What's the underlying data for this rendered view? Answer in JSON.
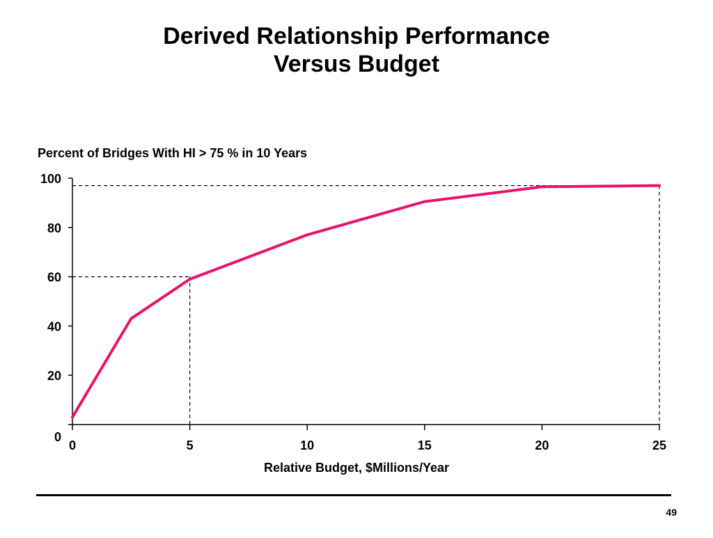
{
  "slide": {
    "title_line1": "Derived Relationship Performance",
    "title_line2": "Versus Budget",
    "page_number": "49"
  },
  "chart_data": {
    "type": "line",
    "title": "",
    "ylabel": "Percent of Bridges With HI > 75 % in 10 Years",
    "xlabel": "Relative Budget, $Millions/Year",
    "xlim": [
      0,
      25
    ],
    "ylim": [
      0,
      100
    ],
    "xticks": [
      0,
      5,
      10,
      15,
      20,
      25
    ],
    "yticks": [
      0,
      20,
      40,
      60,
      80,
      100
    ],
    "grid": false,
    "line_color": "#e8126a",
    "reference_color": "#000000",
    "series": [
      {
        "x": [
          0,
          2.5,
          5,
          10,
          15,
          20,
          25
        ],
        "y": [
          3,
          43,
          59,
          77,
          90.5,
          96.5,
          97
        ]
      }
    ],
    "reference_points": [
      {
        "x": 5,
        "y": 60
      },
      {
        "x": 25,
        "y": 97
      }
    ]
  }
}
